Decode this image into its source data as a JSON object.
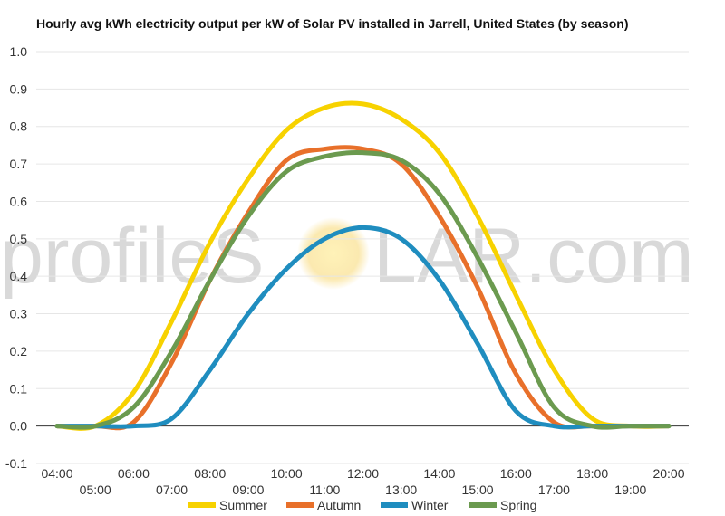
{
  "chart_data": {
    "type": "line",
    "title": "Hourly avg kWh electricity output per kW of Solar PV installed in Jarrell, United States (by season)",
    "xlabel": "",
    "ylabel": "",
    "ylim": [
      -0.1,
      1.0
    ],
    "y_ticks": [
      "-0.1",
      "0.0",
      "0.1",
      "0.2",
      "0.3",
      "0.4",
      "0.5",
      "0.6",
      "0.7",
      "0.8",
      "0.9",
      "1.0"
    ],
    "x_ticks": [
      "04:00",
      "05:00",
      "06:00",
      "07:00",
      "08:00",
      "09:00",
      "10:00",
      "11:00",
      "12:00",
      "13:00",
      "14:00",
      "15:00",
      "16:00",
      "17:00",
      "18:00",
      "19:00",
      "20:00"
    ],
    "x": [
      "04:00",
      "05:00",
      "06:00",
      "07:00",
      "08:00",
      "09:00",
      "10:00",
      "11:00",
      "12:00",
      "13:00",
      "14:00",
      "15:00",
      "16:00",
      "17:00",
      "18:00",
      "19:00",
      "20:00"
    ],
    "grid": true,
    "legend_position": "bottom",
    "series": [
      {
        "name": "Summer",
        "color": "#f7d200",
        "values": [
          0.0,
          0.0,
          0.09,
          0.28,
          0.49,
          0.66,
          0.79,
          0.85,
          0.86,
          0.82,
          0.73,
          0.56,
          0.35,
          0.15,
          0.02,
          0.0,
          0.0
        ]
      },
      {
        "name": "Autumn",
        "color": "#e8702a",
        "values": [
          0.0,
          0.0,
          0.01,
          0.17,
          0.39,
          0.57,
          0.71,
          0.74,
          0.74,
          0.7,
          0.56,
          0.37,
          0.14,
          0.01,
          0.0,
          0.0,
          0.0
        ]
      },
      {
        "name": "Winter",
        "color": "#1f8dbf",
        "values": [
          0.0,
          0.0,
          0.0,
          0.02,
          0.15,
          0.3,
          0.42,
          0.5,
          0.53,
          0.5,
          0.39,
          0.22,
          0.04,
          0.0,
          0.0,
          0.0,
          0.0
        ]
      },
      {
        "name": "Spring",
        "color": "#6b9a4f",
        "values": [
          0.0,
          0.0,
          0.05,
          0.2,
          0.39,
          0.56,
          0.68,
          0.72,
          0.73,
          0.71,
          0.62,
          0.45,
          0.25,
          0.05,
          0.0,
          0.0,
          0.0
        ]
      }
    ]
  },
  "watermark": {
    "text_before": "profileS",
    "text_after": "LAR.com"
  }
}
